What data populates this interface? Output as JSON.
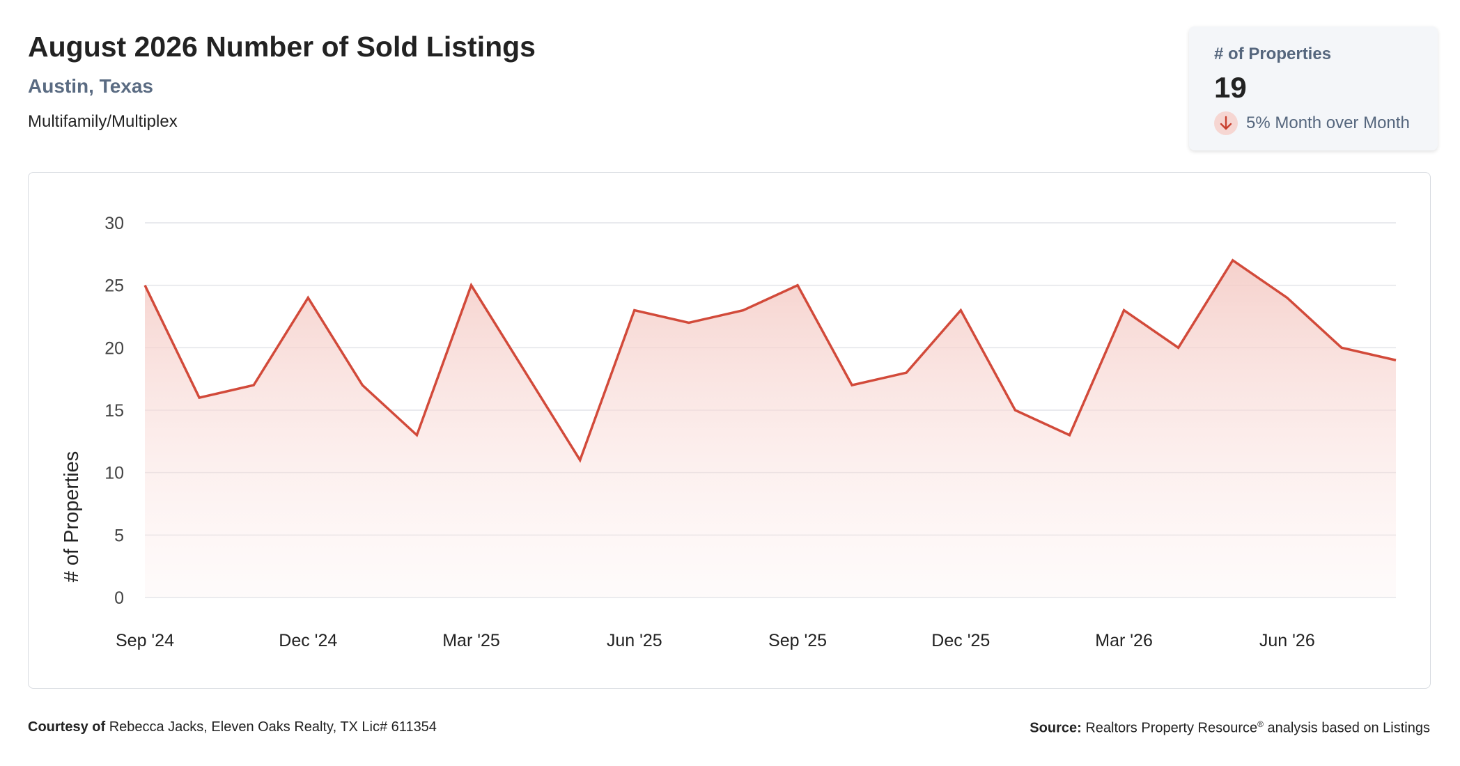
{
  "header": {
    "title": "August 2026 Number of Sold Listings",
    "location": "Austin, Texas",
    "category": "Multifamily/Multiplex"
  },
  "stat_card": {
    "label": "# of Properties",
    "value": "19",
    "change_text": "5% Month over Month",
    "change_icon": "arrow-down-icon",
    "change_direction": "down"
  },
  "footer": {
    "courtesy_label": "Courtesy of",
    "courtesy_text": "Rebecca Jacks, Eleven Oaks Realty, TX Lic# 611354",
    "source_label": "Source:",
    "source_text": "Realtors Property Resource",
    "source_sup": "®",
    "source_suffix": "analysis based on Listings"
  },
  "colors": {
    "line": "#d24a3a",
    "area_top": "#f6d3ce",
    "grid": "#e2e4e8",
    "subtitle": "#5a6b82"
  },
  "chart_data": {
    "type": "area",
    "ylabel": "# of Properties",
    "ylim": [
      0,
      30
    ],
    "y_ticks": [
      0,
      5,
      10,
      15,
      20,
      25,
      30
    ],
    "x_tick_labels": [
      "Sep '24",
      "Dec '24",
      "Mar '25",
      "Jun '25",
      "Sep '25",
      "Dec '25",
      "Mar '26",
      "Jun '26"
    ],
    "x_tick_every": 3,
    "x": [
      "Sep '24",
      "Oct '24",
      "Nov '24",
      "Dec '24",
      "Jan '25",
      "Feb '25",
      "Mar '25",
      "Apr '25",
      "May '25",
      "Jun '25",
      "Jul '25",
      "Aug '25",
      "Sep '25",
      "Oct '25",
      "Nov '25",
      "Dec '25",
      "Jan '26",
      "Feb '26",
      "Mar '26",
      "Apr '26",
      "May '26",
      "Jun '26",
      "Jul '26",
      "Aug '26"
    ],
    "series": [
      {
        "values": [
          25,
          16,
          17,
          24,
          17,
          13,
          25,
          18,
          11,
          23,
          22,
          23,
          25,
          17,
          18,
          23,
          15,
          13,
          23,
          20,
          27,
          24,
          20,
          19
        ]
      }
    ],
    "grid": true,
    "legend": "none"
  }
}
